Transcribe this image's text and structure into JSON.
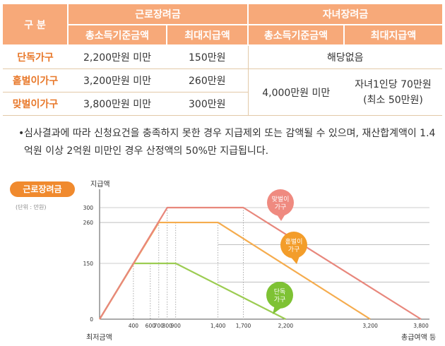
{
  "table": {
    "header_label": "구 분",
    "groups": [
      "근로장려금",
      "자녀장려금"
    ],
    "subheaders": [
      "총소득기준금액",
      "최대지급액",
      "총소득기준금액",
      "최대지급액"
    ],
    "rows": [
      {
        "label": "단독가구",
        "income": "2,200만원 미만",
        "max": "150만원"
      },
      {
        "label": "홑벌이가구",
        "income": "3,200만원 미만",
        "max": "260만원"
      },
      {
        "label": "맞벌이가구",
        "income": "3,800만원 미만",
        "max": "300만원"
      }
    ],
    "child_single_note": "해당없음",
    "child_income": "4,000만원 미만",
    "child_max_line1": "자녀1인당 70만원",
    "child_max_line2": "(최소 50만원)"
  },
  "note": {
    "bullet": "•",
    "text": "심사결과에 따라 신청요건을 충족하지 못한 경우 지급제외 또는 감액될 수 있으며, 재산합계액이 1.4억원 이상 2억원 미만인 경우 산정액의 50%만 지급됩니다."
  },
  "chart_data": {
    "type": "line",
    "title": "근로장려금",
    "unit": "(단위 : 만원)",
    "ylabel": "지급액",
    "xlabel_left": "최저금액",
    "xlabel_right": "총급여액 등",
    "x_ticks": [
      400,
      600,
      700,
      800,
      900,
      1400,
      1700,
      2200,
      3200,
      3800
    ],
    "x_tick_labels": [
      "400",
      "600",
      "700",
      "800",
      "900",
      "1,400",
      "1,700",
      "2,200",
      "3,200",
      "3,800"
    ],
    "y_ticks": [
      0,
      150,
      260,
      300
    ],
    "y_tick_labels": [
      "0",
      "150",
      "260",
      "300"
    ],
    "xlim": [
      0,
      3800
    ],
    "ylim": [
      0,
      300
    ],
    "colors": {
      "single": "#9ccc52",
      "single_callout": "#7ec234",
      "one": "#f5ac4e",
      "one_callout": "#f39d2a",
      "two": "#e8877c",
      "two_callout": "#ef8a80",
      "title_pill": "#f08a2e"
    },
    "series": [
      {
        "key": "single",
        "name": "단독가구",
        "name_lines": [
          "단독",
          "가구"
        ],
        "points": [
          [
            0,
            0
          ],
          [
            400,
            150
          ],
          [
            900,
            150
          ],
          [
            2200,
            0
          ]
        ]
      },
      {
        "key": "one",
        "name": "홑벌이가구",
        "name_lines": [
          "홑벌이",
          "가구"
        ],
        "points": [
          [
            0,
            0
          ],
          [
            700,
            260
          ],
          [
            1400,
            260
          ],
          [
            3200,
            0
          ]
        ]
      },
      {
        "key": "two",
        "name": "맞벌이가구",
        "name_lines": [
          "맞벌이",
          "가구"
        ],
        "points": [
          [
            0,
            0
          ],
          [
            800,
            300
          ],
          [
            1700,
            300
          ],
          [
            3800,
            0
          ]
        ]
      }
    ]
  }
}
